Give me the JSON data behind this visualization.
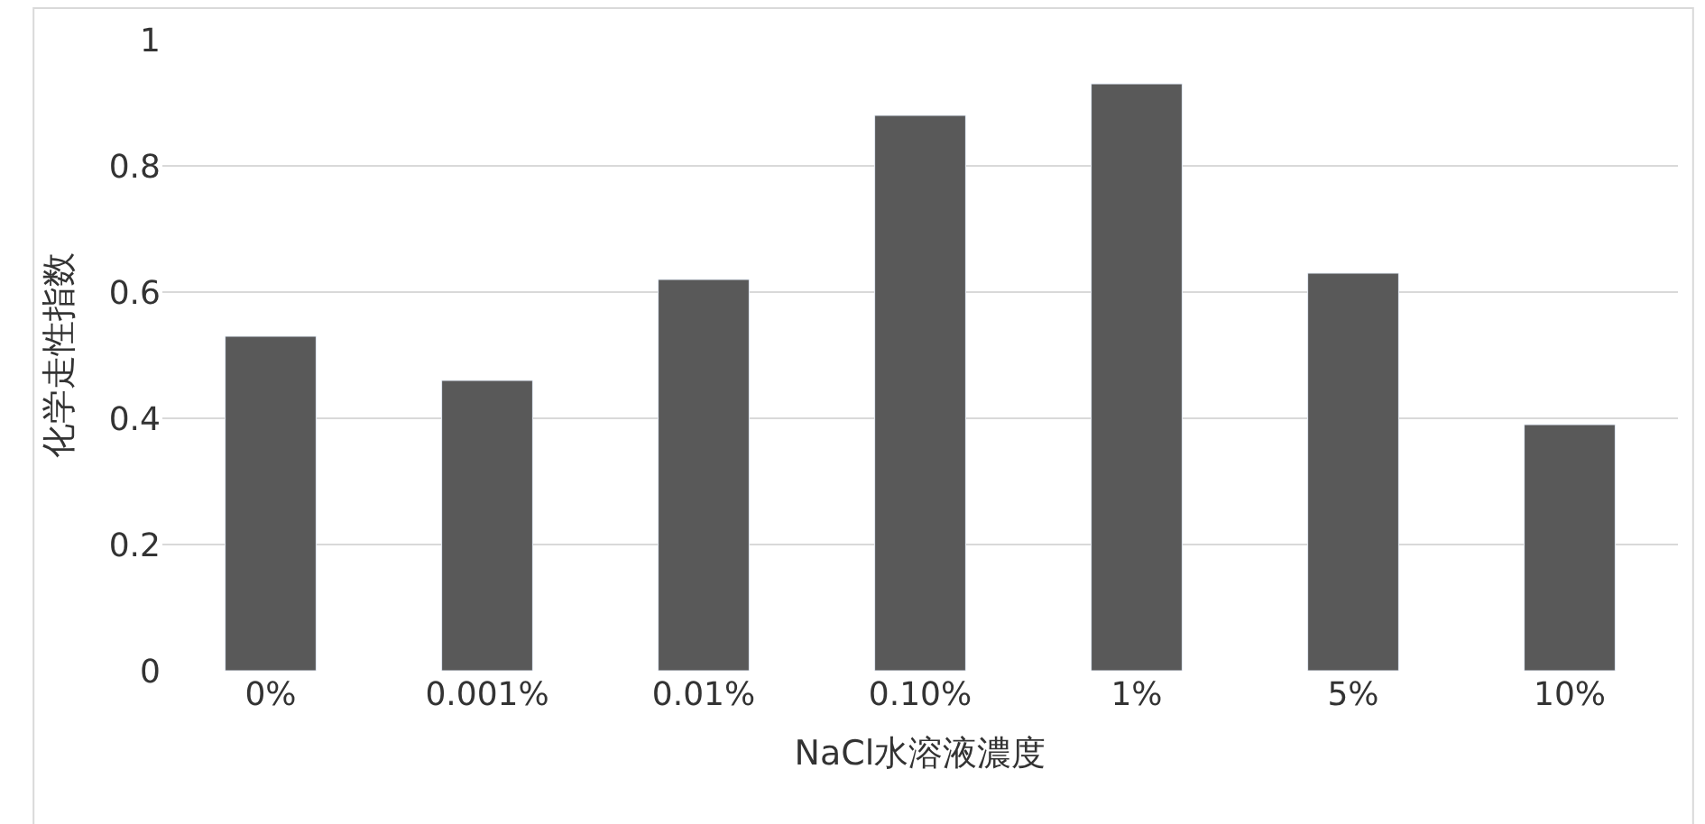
{
  "chart_data": {
    "type": "bar",
    "xlabel": "NaCl水溶液濃度",
    "ylabel": "化学走性指数",
    "categories": [
      "0%",
      "0.001%",
      "0.01%",
      "0.10%",
      "1%",
      "5%",
      "10%"
    ],
    "values": [
      0.53,
      0.46,
      0.62,
      0.88,
      0.93,
      0.63,
      0.39
    ],
    "color": "#595959",
    "ylim": [
      0,
      1
    ],
    "yticks": [
      0,
      0.2,
      0.4,
      0.6,
      0.8,
      1
    ],
    "grid": "y",
    "legend": false
  }
}
